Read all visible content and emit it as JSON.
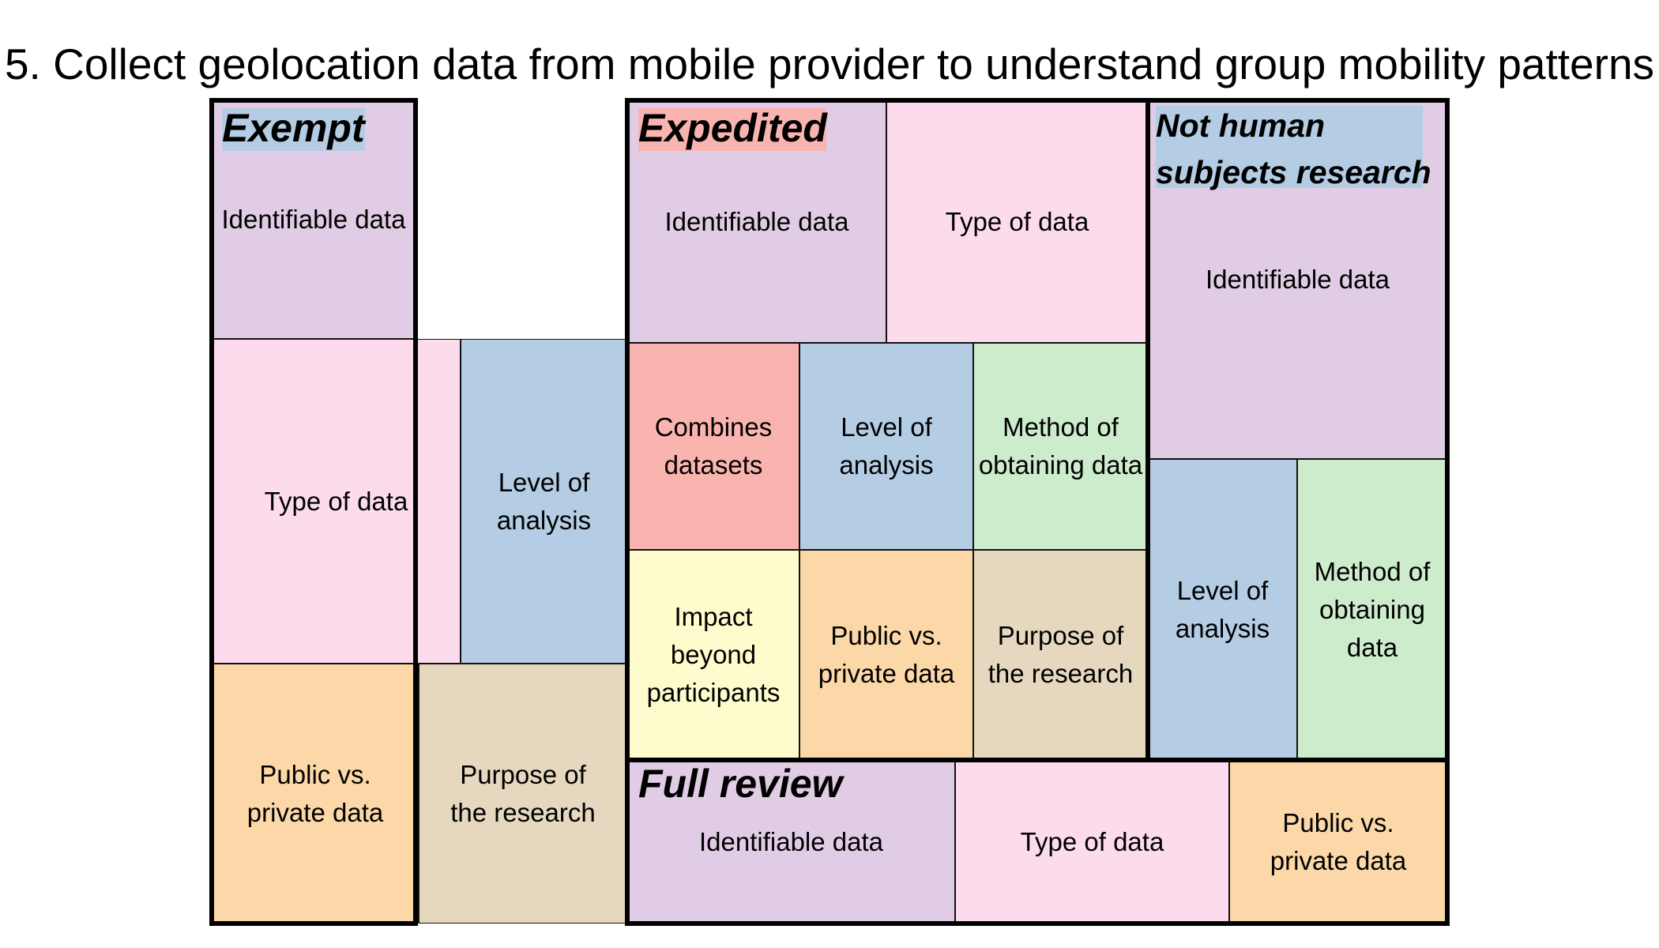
{
  "title": "5. Collect geolocation data from mobile provider to understand group mobility patterns",
  "colors": {
    "identifiable": "#e0cce4",
    "type": "#fcdcec",
    "level": "#b4cce4",
    "method": "#cceccc",
    "public": "#fcd8a8",
    "purpose": "#e6d8bf",
    "combines": "#fab4b0",
    "impact": "#fefccc",
    "exempt_highlight": "#b4cce4",
    "expedited_highlight": "#fab4b0",
    "nhsr_highlight": "#b4cce4"
  },
  "groups": [
    {
      "name": "Exempt",
      "cells": [
        {
          "label": "Identifiable data",
          "category": "identifiable"
        },
        {
          "label": "Type of data",
          "category": "type"
        },
        {
          "label": "Level of\nanalysis",
          "category": "level"
        },
        {
          "label": "Public vs.\nprivate data",
          "category": "public"
        },
        {
          "label": "Purpose of\nthe research",
          "category": "purpose"
        }
      ]
    },
    {
      "name": "Expedited",
      "cells": [
        {
          "label": "Identifiable data",
          "category": "identifiable"
        },
        {
          "label": "Type of data",
          "category": "type"
        },
        {
          "label": "Combines\ndatasets",
          "category": "combines"
        },
        {
          "label": "Level of\nanalysis",
          "category": "level"
        },
        {
          "label": "Method of\nobtaining data",
          "category": "method"
        },
        {
          "label": "Impact\nbeyond\nparticipants",
          "category": "impact"
        },
        {
          "label": "Public vs.\nprivate data",
          "category": "public"
        },
        {
          "label": "Purpose of\nthe research",
          "category": "purpose"
        }
      ]
    },
    {
      "name": "Not human\nsubjects research",
      "cells": [
        {
          "label": "Identifiable data",
          "category": "identifiable"
        },
        {
          "label": "Level of\nanalysis",
          "category": "level"
        },
        {
          "label": "Method of\nobtaining\ndata",
          "category": "method"
        }
      ]
    },
    {
      "name": "Full review",
      "cells": [
        {
          "label": "Identifiable data",
          "category": "identifiable"
        },
        {
          "label": "Type of data",
          "category": "type"
        },
        {
          "label": "Public vs.\nprivate data",
          "category": "public"
        }
      ]
    }
  ]
}
